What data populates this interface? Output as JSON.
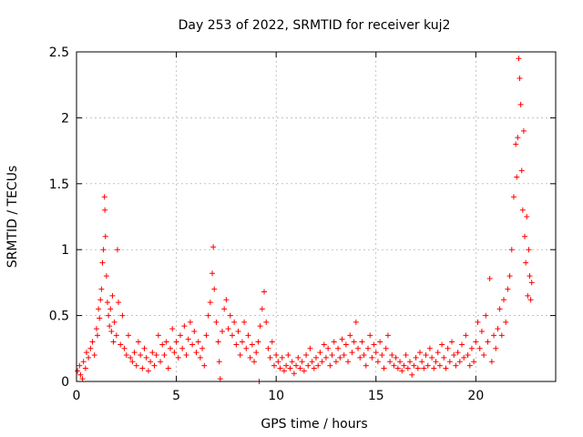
{
  "chart_data": {
    "type": "scatter",
    "title": "Day 253 of 2022, SRMTID for receiver kuj2",
    "xlabel": "GPS time / hours",
    "ylabel": "SRMTID / TECUs",
    "xlim": [
      0,
      24
    ],
    "ylim": [
      0,
      2.5
    ],
    "xticks": [
      "0",
      "5",
      "10",
      "15",
      "20"
    ],
    "xtick_values": [
      0,
      5,
      10,
      15,
      20
    ],
    "yticks": [
      "0",
      "0.5",
      "1",
      "1.5",
      "2",
      "2.5"
    ],
    "ytick_values": [
      0,
      0.5,
      1,
      1.5,
      2,
      2.5
    ],
    "grid": true,
    "marker": "+",
    "series": [
      {
        "name": "kuj2",
        "color": "#ff0000",
        "points": [
          [
            0.05,
            0.08
          ],
          [
            0.15,
            0.12
          ],
          [
            0.2,
            0.05
          ],
          [
            0.3,
            0.02
          ],
          [
            0.35,
            0.15
          ],
          [
            0.45,
            0.1
          ],
          [
            0.5,
            0.22
          ],
          [
            0.6,
            0.18
          ],
          [
            0.7,
            0.25
          ],
          [
            0.8,
            0.3
          ],
          [
            0.9,
            0.2
          ],
          [
            1.0,
            0.4
          ],
          [
            1.05,
            0.35
          ],
          [
            1.1,
            0.55
          ],
          [
            1.15,
            0.48
          ],
          [
            1.2,
            0.62
          ],
          [
            1.25,
            0.7
          ],
          [
            1.3,
            0.9
          ],
          [
            1.35,
            1.0
          ],
          [
            1.4,
            1.4
          ],
          [
            1.42,
            1.3
          ],
          [
            1.45,
            1.1
          ],
          [
            1.5,
            0.8
          ],
          [
            1.55,
            0.6
          ],
          [
            1.6,
            0.5
          ],
          [
            1.65,
            0.42
          ],
          [
            1.7,
            0.55
          ],
          [
            1.75,
            0.38
          ],
          [
            1.8,
            0.65
          ],
          [
            1.85,
            0.3
          ],
          [
            1.9,
            0.45
          ],
          [
            2.0,
            0.35
          ],
          [
            2.05,
            1.0
          ],
          [
            2.1,
            0.6
          ],
          [
            2.2,
            0.28
          ],
          [
            2.3,
            0.5
          ],
          [
            2.4,
            0.25
          ],
          [
            2.5,
            0.2
          ],
          [
            2.6,
            0.35
          ],
          [
            2.7,
            0.18
          ],
          [
            2.8,
            0.15
          ],
          [
            2.9,
            0.22
          ],
          [
            3.0,
            0.12
          ],
          [
            3.1,
            0.3
          ],
          [
            3.2,
            0.2
          ],
          [
            3.3,
            0.1
          ],
          [
            3.4,
            0.25
          ],
          [
            3.5,
            0.18
          ],
          [
            3.6,
            0.08
          ],
          [
            3.7,
            0.15
          ],
          [
            3.8,
            0.22
          ],
          [
            3.9,
            0.12
          ],
          [
            4.0,
            0.2
          ],
          [
            4.1,
            0.35
          ],
          [
            4.2,
            0.15
          ],
          [
            4.3,
            0.28
          ],
          [
            4.4,
            0.2
          ],
          [
            4.5,
            0.3
          ],
          [
            4.6,
            0.1
          ],
          [
            4.7,
            0.25
          ],
          [
            4.8,
            0.4
          ],
          [
            4.9,
            0.22
          ],
          [
            5.0,
            0.3
          ],
          [
            5.1,
            0.18
          ],
          [
            5.2,
            0.35
          ],
          [
            5.3,
            0.25
          ],
          [
            5.4,
            0.42
          ],
          [
            5.5,
            0.2
          ],
          [
            5.6,
            0.32
          ],
          [
            5.7,
            0.45
          ],
          [
            5.8,
            0.28
          ],
          [
            5.9,
            0.38
          ],
          [
            6.0,
            0.22
          ],
          [
            6.1,
            0.3
          ],
          [
            6.2,
            0.18
          ],
          [
            6.3,
            0.25
          ],
          [
            6.4,
            0.12
          ],
          [
            6.5,
            0.35
          ],
          [
            6.6,
            0.5
          ],
          [
            6.7,
            0.6
          ],
          [
            6.8,
            0.82
          ],
          [
            6.85,
            1.02
          ],
          [
            6.9,
            0.7
          ],
          [
            7.0,
            0.45
          ],
          [
            7.1,
            0.3
          ],
          [
            7.15,
            0.15
          ],
          [
            7.2,
            0.02
          ],
          [
            7.3,
            0.38
          ],
          [
            7.4,
            0.55
          ],
          [
            7.5,
            0.62
          ],
          [
            7.6,
            0.4
          ],
          [
            7.7,
            0.5
          ],
          [
            7.8,
            0.35
          ],
          [
            7.9,
            0.45
          ],
          [
            8.0,
            0.28
          ],
          [
            8.1,
            0.38
          ],
          [
            8.2,
            0.2
          ],
          [
            8.3,
            0.3
          ],
          [
            8.4,
            0.45
          ],
          [
            8.5,
            0.25
          ],
          [
            8.6,
            0.35
          ],
          [
            8.7,
            0.18
          ],
          [
            8.8,
            0.28
          ],
          [
            8.9,
            0.15
          ],
          [
            9.0,
            0.22
          ],
          [
            9.1,
            0.3
          ],
          [
            9.15,
            0.0
          ],
          [
            9.2,
            0.42
          ],
          [
            9.3,
            0.55
          ],
          [
            9.4,
            0.68
          ],
          [
            9.5,
            0.45
          ],
          [
            9.6,
            0.25
          ],
          [
            9.7,
            0.18
          ],
          [
            9.8,
            0.3
          ],
          [
            9.9,
            0.12
          ],
          [
            10.0,
            0.2
          ],
          [
            10.1,
            0.15
          ],
          [
            10.2,
            0.1
          ],
          [
            10.3,
            0.18
          ],
          [
            10.4,
            0.08
          ],
          [
            10.5,
            0.12
          ],
          [
            10.6,
            0.2
          ],
          [
            10.7,
            0.1
          ],
          [
            10.8,
            0.15
          ],
          [
            10.9,
            0.06
          ],
          [
            11.0,
            0.12
          ],
          [
            11.1,
            0.18
          ],
          [
            11.2,
            0.1
          ],
          [
            11.3,
            0.15
          ],
          [
            11.4,
            0.08
          ],
          [
            11.5,
            0.2
          ],
          [
            11.6,
            0.12
          ],
          [
            11.7,
            0.25
          ],
          [
            11.8,
            0.15
          ],
          [
            11.9,
            0.1
          ],
          [
            12.0,
            0.18
          ],
          [
            12.1,
            0.12
          ],
          [
            12.2,
            0.22
          ],
          [
            12.3,
            0.15
          ],
          [
            12.4,
            0.28
          ],
          [
            12.5,
            0.18
          ],
          [
            12.6,
            0.25
          ],
          [
            12.7,
            0.12
          ],
          [
            12.8,
            0.2
          ],
          [
            12.9,
            0.3
          ],
          [
            13.0,
            0.15
          ],
          [
            13.1,
            0.25
          ],
          [
            13.2,
            0.18
          ],
          [
            13.3,
            0.32
          ],
          [
            13.4,
            0.2
          ],
          [
            13.5,
            0.28
          ],
          [
            13.6,
            0.15
          ],
          [
            13.7,
            0.35
          ],
          [
            13.8,
            0.22
          ],
          [
            13.9,
            0.3
          ],
          [
            14.0,
            0.45
          ],
          [
            14.1,
            0.25
          ],
          [
            14.2,
            0.18
          ],
          [
            14.3,
            0.3
          ],
          [
            14.4,
            0.2
          ],
          [
            14.5,
            0.12
          ],
          [
            14.6,
            0.25
          ],
          [
            14.7,
            0.35
          ],
          [
            14.8,
            0.18
          ],
          [
            14.9,
            0.28
          ],
          [
            15.0,
            0.22
          ],
          [
            15.1,
            0.15
          ],
          [
            15.2,
            0.3
          ],
          [
            15.3,
            0.2
          ],
          [
            15.4,
            0.1
          ],
          [
            15.5,
            0.25
          ],
          [
            15.6,
            0.35
          ],
          [
            15.7,
            0.15
          ],
          [
            15.8,
            0.2
          ],
          [
            15.9,
            0.12
          ],
          [
            16.0,
            0.18
          ],
          [
            16.1,
            0.1
          ],
          [
            16.2,
            0.15
          ],
          [
            16.3,
            0.08
          ],
          [
            16.4,
            0.12
          ],
          [
            16.5,
            0.2
          ],
          [
            16.6,
            0.1
          ],
          [
            16.7,
            0.15
          ],
          [
            16.8,
            0.05
          ],
          [
            16.9,
            0.12
          ],
          [
            17.0,
            0.18
          ],
          [
            17.1,
            0.1
          ],
          [
            17.2,
            0.22
          ],
          [
            17.3,
            0.15
          ],
          [
            17.4,
            0.1
          ],
          [
            17.5,
            0.2
          ],
          [
            17.6,
            0.12
          ],
          [
            17.7,
            0.25
          ],
          [
            17.8,
            0.18
          ],
          [
            17.9,
            0.1
          ],
          [
            18.0,
            0.15
          ],
          [
            18.1,
            0.22
          ],
          [
            18.2,
            0.12
          ],
          [
            18.3,
            0.28
          ],
          [
            18.4,
            0.18
          ],
          [
            18.5,
            0.1
          ],
          [
            18.6,
            0.25
          ],
          [
            18.7,
            0.15
          ],
          [
            18.8,
            0.3
          ],
          [
            18.9,
            0.2
          ],
          [
            19.0,
            0.12
          ],
          [
            19.1,
            0.22
          ],
          [
            19.2,
            0.15
          ],
          [
            19.3,
            0.28
          ],
          [
            19.4,
            0.18
          ],
          [
            19.5,
            0.35
          ],
          [
            19.6,
            0.2
          ],
          [
            19.7,
            0.12
          ],
          [
            19.8,
            0.25
          ],
          [
            19.9,
            0.15
          ],
          [
            20.0,
            0.3
          ],
          [
            20.1,
            0.45
          ],
          [
            20.2,
            0.25
          ],
          [
            20.3,
            0.38
          ],
          [
            20.4,
            0.2
          ],
          [
            20.5,
            0.5
          ],
          [
            20.6,
            0.3
          ],
          [
            20.7,
            0.78
          ],
          [
            20.8,
            0.15
          ],
          [
            20.9,
            0.35
          ],
          [
            21.0,
            0.25
          ],
          [
            21.1,
            0.4
          ],
          [
            21.2,
            0.55
          ],
          [
            21.3,
            0.35
          ],
          [
            21.4,
            0.62
          ],
          [
            21.5,
            0.45
          ],
          [
            21.6,
            0.7
          ],
          [
            21.7,
            0.8
          ],
          [
            21.8,
            1.0
          ],
          [
            21.9,
            1.4
          ],
          [
            22.0,
            1.8
          ],
          [
            22.05,
            1.55
          ],
          [
            22.1,
            1.85
          ],
          [
            22.15,
            2.45
          ],
          [
            22.2,
            2.3
          ],
          [
            22.25,
            2.1
          ],
          [
            22.3,
            1.6
          ],
          [
            22.35,
            1.3
          ],
          [
            22.4,
            1.9
          ],
          [
            22.45,
            1.1
          ],
          [
            22.5,
            0.9
          ],
          [
            22.55,
            1.25
          ],
          [
            22.6,
            0.65
          ],
          [
            22.65,
            1.0
          ],
          [
            22.7,
            0.8
          ],
          [
            22.75,
            0.62
          ],
          [
            22.8,
            0.75
          ]
        ]
      }
    ]
  }
}
